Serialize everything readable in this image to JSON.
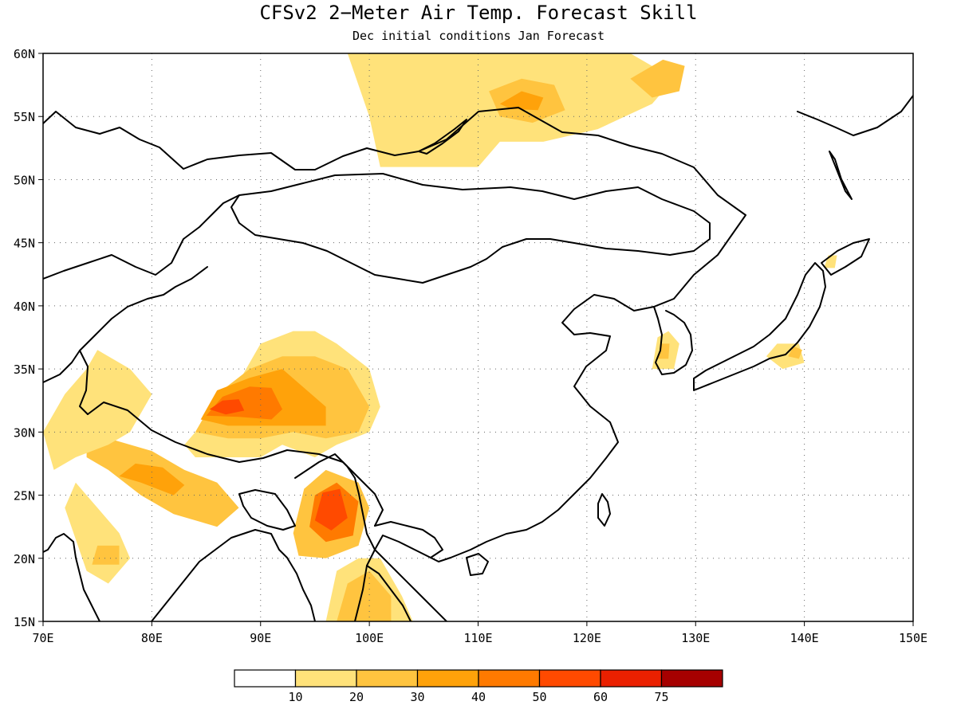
{
  "title": "CFSv2 2−Meter Air Temp. Forecast Skill",
  "subtitle": "Dec initial conditions  Jan Forecast",
  "colors": {
    "c0": "#ffffff",
    "c10": "#ffe27a",
    "c20": "#ffc43f",
    "c30": "#ffa20a",
    "c40": "#ff7a00",
    "c50": "#ff4a00",
    "c60": "#ea2000",
    "c75": "#a60000"
  },
  "chart_data": {
    "type": "heatmap",
    "title": "CFSv2 2−Meter Air Temp. Forecast Skill",
    "subtitle": "Dec initial conditions  Jan Forecast",
    "xlim": [
      70,
      150
    ],
    "ylim": [
      15,
      60
    ],
    "x_ticks": [
      {
        "value": 70,
        "label": "70E"
      },
      {
        "value": 80,
        "label": "80E"
      },
      {
        "value": 90,
        "label": "90E"
      },
      {
        "value": 100,
        "label": "100E"
      },
      {
        "value": 110,
        "label": "110E"
      },
      {
        "value": 120,
        "label": "120E"
      },
      {
        "value": 130,
        "label": "130E"
      },
      {
        "value": 140,
        "label": "140E"
      },
      {
        "value": 150,
        "label": "150E"
      }
    ],
    "y_ticks": [
      {
        "value": 15,
        "label": "15N"
      },
      {
        "value": 20,
        "label": "20N"
      },
      {
        "value": 25,
        "label": "25N"
      },
      {
        "value": 30,
        "label": "30N"
      },
      {
        "value": 35,
        "label": "35N"
      },
      {
        "value": 40,
        "label": "40N"
      },
      {
        "value": 45,
        "label": "45N"
      },
      {
        "value": 50,
        "label": "50N"
      },
      {
        "value": 55,
        "label": "55N"
      },
      {
        "value": 60,
        "label": "60N"
      }
    ],
    "grid": true,
    "colorbar": {
      "levels": [
        10,
        20,
        30,
        40,
        50,
        60,
        75
      ],
      "labels": [
        "10",
        "20",
        "30",
        "40",
        "50",
        "60",
        "75"
      ],
      "bins": 8
    },
    "regions": [
      {
        "name": "tibetan-plateau",
        "points": [
          [
            83,
            29
          ],
          [
            86,
            32
          ],
          [
            88,
            34
          ],
          [
            90,
            37
          ],
          [
            93,
            38
          ],
          [
            95,
            38
          ],
          [
            97,
            37
          ],
          [
            100,
            35
          ],
          [
            101,
            32
          ],
          [
            100,
            30
          ],
          [
            97,
            29
          ],
          [
            95,
            28
          ],
          [
            92,
            29
          ],
          [
            90,
            28
          ],
          [
            87,
            28
          ],
          [
            84,
            28
          ]
        ],
        "level": 10
      },
      {
        "name": "tibetan-plateau-inner",
        "points": [
          [
            84,
            30
          ],
          [
            86,
            33
          ],
          [
            89,
            35
          ],
          [
            92,
            36
          ],
          [
            95,
            36
          ],
          [
            98,
            35
          ],
          [
            100,
            32
          ],
          [
            99,
            30
          ],
          [
            96,
            29.5
          ],
          [
            93,
            30
          ],
          [
            90,
            29.5
          ],
          [
            87,
            29.5
          ]
        ],
        "level": 20
      },
      {
        "name": "tibetan-plateau-core",
        "points": [
          [
            84.5,
            31
          ],
          [
            86,
            33.3
          ],
          [
            89,
            34.3
          ],
          [
            92,
            35
          ],
          [
            94,
            33.5
          ],
          [
            96,
            32
          ],
          [
            96,
            30.5
          ],
          [
            93,
            30.5
          ],
          [
            90,
            30.5
          ],
          [
            87,
            30.5
          ]
        ],
        "level": 30
      },
      {
        "name": "tibetan-plateau-hot",
        "points": [
          [
            85,
            31.3
          ],
          [
            86.5,
            32.8
          ],
          [
            89,
            33.6
          ],
          [
            91,
            33.5
          ],
          [
            92,
            31.8
          ],
          [
            91,
            31
          ],
          [
            88,
            31.2
          ]
        ],
        "level": 40
      },
      {
        "name": "tibetan-plateau-max",
        "points": [
          [
            85.3,
            31.8
          ],
          [
            86.5,
            32.5
          ],
          [
            88,
            32.6
          ],
          [
            88.5,
            31.7
          ],
          [
            86.8,
            31.4
          ]
        ],
        "level": 50
      },
      {
        "name": "north-india-band",
        "points": [
          [
            74,
            28
          ],
          [
            76,
            27
          ],
          [
            79,
            25
          ],
          [
            82,
            23.5
          ],
          [
            86,
            22.5
          ],
          [
            88,
            24
          ],
          [
            86,
            26
          ],
          [
            83,
            27
          ],
          [
            80,
            28.5
          ],
          [
            76,
            29.5
          ],
          [
            74,
            29.5
          ]
        ],
        "level": 20
      },
      {
        "name": "north-india-core",
        "points": [
          [
            77,
            26.5
          ],
          [
            79,
            26
          ],
          [
            82,
            25
          ],
          [
            83,
            25.8
          ],
          [
            81,
            27.2
          ],
          [
            78.5,
            27.5
          ]
        ],
        "level": 30
      },
      {
        "name": "myanmar-block",
        "points": [
          [
            93,
            22
          ],
          [
            94,
            25.5
          ],
          [
            96,
            27
          ],
          [
            99,
            26
          ],
          [
            100,
            24
          ],
          [
            99,
            21
          ],
          [
            96,
            20
          ],
          [
            93.5,
            20.2
          ]
        ],
        "level": 20
      },
      {
        "name": "myanmar-core",
        "points": [
          [
            94.5,
            22.5
          ],
          [
            95,
            25
          ],
          [
            97,
            26
          ],
          [
            99,
            24.5
          ],
          [
            98.5,
            21.8
          ],
          [
            96,
            21.3
          ]
        ],
        "level": 40
      },
      {
        "name": "myanmar-hot",
        "points": [
          [
            95,
            23
          ],
          [
            95.7,
            25.2
          ],
          [
            97.3,
            25.5
          ],
          [
            98,
            23.2
          ],
          [
            96.5,
            22.2
          ]
        ],
        "level": 50
      },
      {
        "name": "indochina-south",
        "points": [
          [
            96,
            15
          ],
          [
            97,
            19
          ],
          [
            99,
            20
          ],
          [
            101,
            20
          ],
          [
            103,
            17
          ],
          [
            104,
            15
          ]
        ],
        "level": 10
      },
      {
        "name": "indochina-core",
        "points": [
          [
            97,
            15
          ],
          [
            98,
            18
          ],
          [
            100,
            19
          ],
          [
            102,
            17
          ],
          [
            102,
            15
          ]
        ],
        "level": 20
      },
      {
        "name": "western-india",
        "points": [
          [
            72,
            24
          ],
          [
            73,
            26
          ],
          [
            75,
            24
          ],
          [
            77,
            22
          ],
          [
            78,
            20
          ],
          [
            76,
            18
          ],
          [
            74,
            19
          ]
        ],
        "level": 10
      },
      {
        "name": "gujarat-spot",
        "points": [
          [
            74.5,
            19.5
          ],
          [
            75,
            21
          ],
          [
            77,
            21
          ],
          [
            77,
            19.5
          ]
        ],
        "level": 20
      },
      {
        "name": "pakistan-band",
        "points": [
          [
            70,
            30
          ],
          [
            72,
            33
          ],
          [
            74,
            35
          ],
          [
            75,
            36.5
          ],
          [
            78,
            35
          ],
          [
            80,
            33
          ],
          [
            78,
            30
          ],
          [
            76,
            29
          ],
          [
            73,
            28
          ],
          [
            71,
            27
          ]
        ],
        "level": 10
      },
      {
        "name": "siberia-north",
        "points": [
          [
            98,
            60
          ],
          [
            103,
            60
          ],
          [
            112,
            60
          ],
          [
            116,
            60
          ],
          [
            118,
            57
          ],
          [
            116,
            55
          ],
          [
            112,
            53
          ],
          [
            110,
            51
          ],
          [
            105,
            51
          ],
          [
            101,
            51
          ],
          [
            100,
            55
          ]
        ],
        "level": 10
      },
      {
        "name": "siberia-east",
        "points": [
          [
            112,
            60
          ],
          [
            124,
            60
          ],
          [
            128,
            58
          ],
          [
            126,
            56
          ],
          [
            121,
            54
          ],
          [
            116,
            53
          ],
          [
            112,
            53
          ]
        ],
        "level": 10
      },
      {
        "name": "siberia-core",
        "points": [
          [
            111,
            57
          ],
          [
            114,
            58
          ],
          [
            117,
            57.5
          ],
          [
            118,
            55.5
          ],
          [
            115,
            54.5
          ],
          [
            112,
            55
          ]
        ],
        "level": 20
      },
      {
        "name": "siberia-hot",
        "points": [
          [
            112,
            56
          ],
          [
            114,
            57
          ],
          [
            116,
            56.5
          ],
          [
            115.5,
            55.5
          ],
          [
            113,
            55.6
          ]
        ],
        "level": 30
      },
      {
        "name": "north-east-blob",
        "points": [
          [
            124,
            58
          ],
          [
            127,
            59.5
          ],
          [
            129,
            59
          ],
          [
            128.5,
            57
          ],
          [
            126,
            56.5
          ]
        ],
        "level": 20
      },
      {
        "name": "korea-spot",
        "points": [
          [
            126,
            35
          ],
          [
            126.5,
            37.5
          ],
          [
            127.5,
            38
          ],
          [
            128.5,
            37
          ],
          [
            128,
            35
          ]
        ],
        "level": 10
      },
      {
        "name": "korea-inner",
        "points": [
          [
            126.5,
            35.8
          ],
          [
            126.8,
            37
          ],
          [
            127.6,
            37
          ],
          [
            127.5,
            35.8
          ]
        ],
        "level": 20
      },
      {
        "name": "japan-spot",
        "points": [
          [
            136.5,
            36
          ],
          [
            137.5,
            37
          ],
          [
            139.5,
            37
          ],
          [
            140,
            35.5
          ],
          [
            138,
            35
          ]
        ],
        "level": 10
      },
      {
        "name": "japan-inner",
        "points": [
          [
            138.5,
            36
          ],
          [
            139,
            36.8
          ],
          [
            139.8,
            36.5
          ],
          [
            139.5,
            35.8
          ]
        ],
        "level": 20
      },
      {
        "name": "hokkaido-spot",
        "points": [
          [
            141.8,
            43
          ],
          [
            142.2,
            44
          ],
          [
            143,
            44
          ],
          [
            142.8,
            43
          ]
        ],
        "level": 10
      }
    ]
  }
}
